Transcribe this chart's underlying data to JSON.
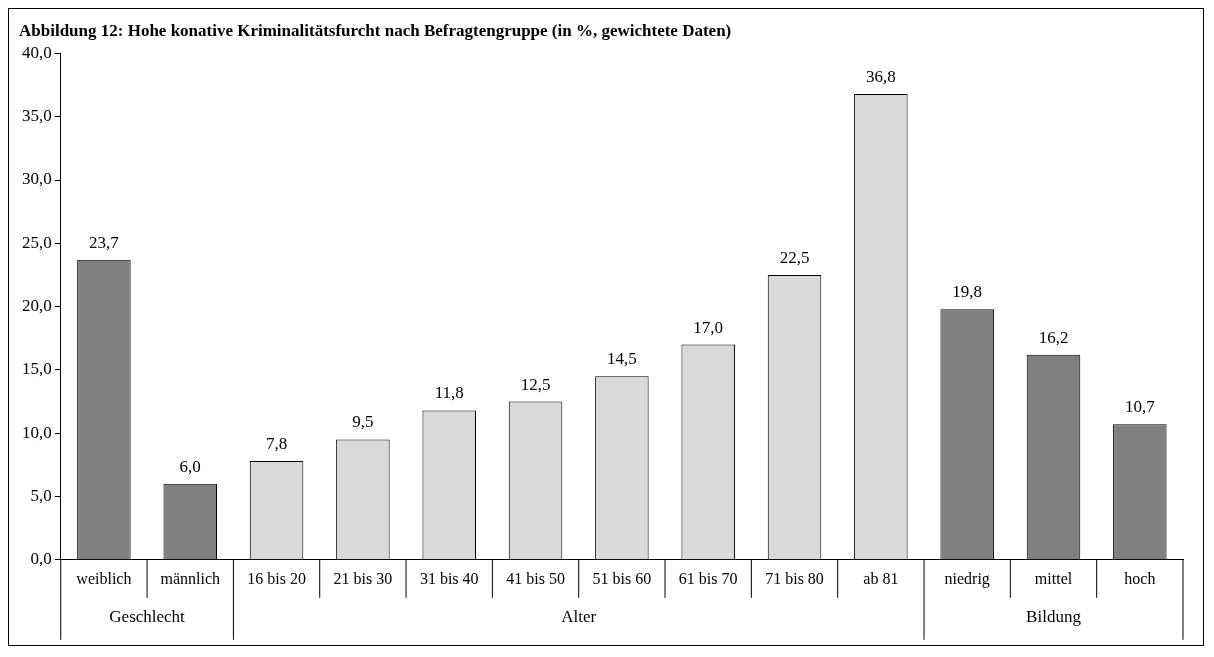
{
  "chart_data": {
    "type": "bar",
    "title": "Abbildung 12: Hohe konative Kriminalitätsfurcht nach Befragtengruppe (in %, gewichtete Daten)",
    "categories": [
      "weiblich",
      "männlich",
      "16 bis 20",
      "21 bis 30",
      "31 bis 40",
      "41 bis 50",
      "51 bis 60",
      "61 bis 70",
      "71 bis 80",
      "ab 81",
      "niedrig",
      "mittel",
      "hoch"
    ],
    "values": [
      23.7,
      6.0,
      7.8,
      9.5,
      11.8,
      12.5,
      14.5,
      17.0,
      22.5,
      36.8,
      19.8,
      16.2,
      10.7
    ],
    "colors": [
      "#808080",
      "#808080",
      "#d9d9d9",
      "#d9d9d9",
      "#d9d9d9",
      "#d9d9d9",
      "#d9d9d9",
      "#d9d9d9",
      "#d9d9d9",
      "#d9d9d9",
      "#808080",
      "#808080",
      "#808080"
    ],
    "annotations": [
      "Geschlecht",
      "Alter",
      "Bildung"
    ],
    "ylim": [
      0,
      40
    ],
    "yticks": [
      {
        "value": 0,
        "label": "0,0"
      },
      {
        "value": 5,
        "label": "5,0"
      },
      {
        "value": 10,
        "label": "10,0"
      },
      {
        "value": 15,
        "label": "15,0"
      },
      {
        "value": 20,
        "label": "20,0"
      },
      {
        "value": 25,
        "label": "25,0"
      },
      {
        "value": 30,
        "label": "30,0"
      },
      {
        "value": 35,
        "label": "35,0"
      },
      {
        "value": 40,
        "label": "40,0"
      }
    ],
    "value_labels": [
      "23,7",
      "6,0",
      "7,8",
      "9,5",
      "11,8",
      "12,5",
      "14,5",
      "17,0",
      "22,5",
      "36,8",
      "19,8",
      "16,2",
      "10,7"
    ],
    "grid": false,
    "legend": false
  }
}
